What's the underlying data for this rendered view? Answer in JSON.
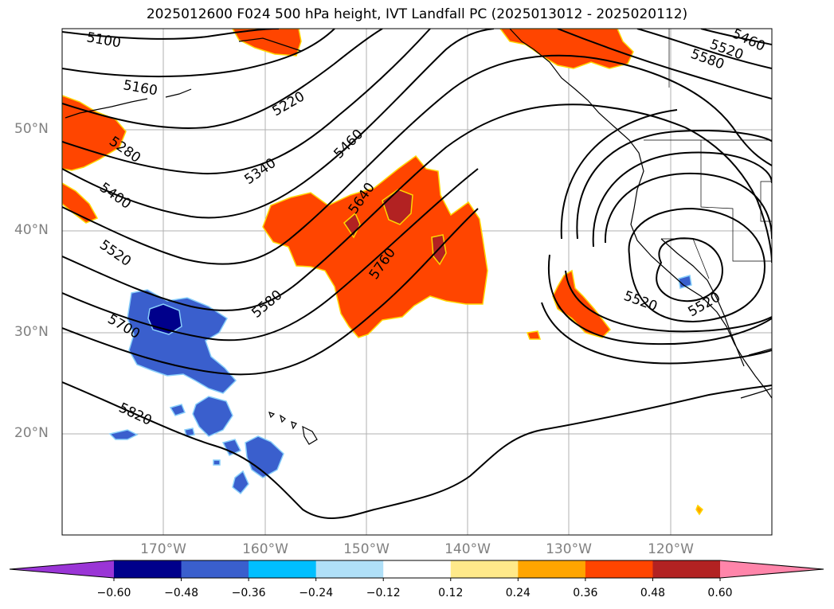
{
  "title": "2025012600 F024 500 hPa height, IVT Landfall PC (2025013012 - 2025020112)",
  "map": {
    "extent": {
      "lon_min": -180,
      "lon_max": -110,
      "lat_min": 10,
      "lat_max": 60
    },
    "lat_labels": [
      "50°N",
      "40°N",
      "30°N",
      "20°N"
    ],
    "lon_labels": [
      "170°W",
      "160°W",
      "150°W",
      "140°W",
      "130°W",
      "120°W"
    ],
    "contour_labels": [
      "5100",
      "5160",
      "5220",
      "5280",
      "5340",
      "5400",
      "5460",
      "5520",
      "5580",
      "5640",
      "5700",
      "5760",
      "5820",
      "5460",
      "5520",
      "5580",
      "5520",
      "5520"
    ],
    "gridlines": true
  },
  "colorbar": {
    "ticks": [
      "−0.60",
      "−0.48",
      "−0.36",
      "−0.24",
      "−0.12",
      "0.12",
      "0.24",
      "0.36",
      "0.48",
      "0.60"
    ],
    "colors": [
      "#9a35d6",
      "#00008b",
      "#3a5fcd",
      "#00bfff",
      "#b0e0f8",
      "#ffffff",
      "#ffe98a",
      "#ffa500",
      "#ff4500",
      "#b22222",
      "#ff85aa"
    ],
    "extend": "both"
  }
}
